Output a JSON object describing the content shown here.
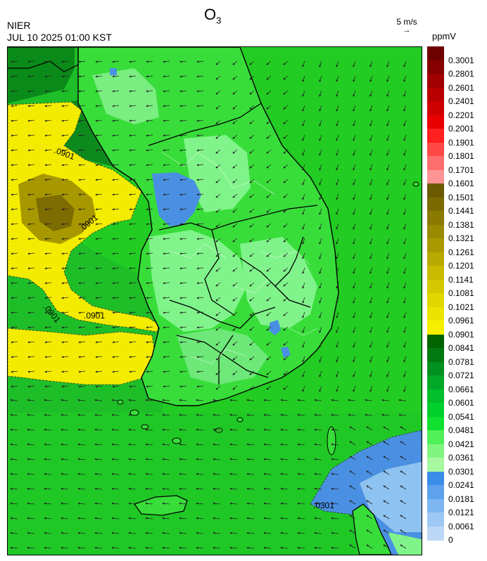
{
  "header": {
    "title_main": "O",
    "title_sub": "3",
    "org": "NIER",
    "datetime": "JUL 10 2025 01:00 KST",
    "wind_ref_label": "5 m/s",
    "wind_ref_arrow": "→",
    "unit": "ppmV"
  },
  "legend": {
    "labels": [
      "0.3001",
      "0.2801",
      "0.2601",
      "0.2401",
      "0.2201",
      "0.2001",
      "0.1901",
      "0.1801",
      "0.1701",
      "0.1601",
      "0.1501",
      "0.1441",
      "0.1381",
      "0.1321",
      "0.1261",
      "0.1201",
      "0.1141",
      "0.1081",
      "0.1021",
      "0.0961",
      "0.0901",
      "0.0841",
      "0.0781",
      "0.0721",
      "0.0661",
      "0.0601",
      "0.0541",
      "0.0481",
      "0.0421",
      "0.0361",
      "0.0301",
      "0.0241",
      "0.0181",
      "0.0121",
      "0.0061",
      "0"
    ],
    "colors": [
      "#6e0000",
      "#860000",
      "#a00000",
      "#b80000",
      "#d00000",
      "#e80000",
      "#ff2020",
      "#ff4848",
      "#ff6e6e",
      "#ff9494",
      "#6b5a00",
      "#7a6a00",
      "#8a7a00",
      "#9a8a00",
      "#aa9a00",
      "#b8aa00",
      "#c8ba00",
      "#d4c800",
      "#e0d600",
      "#ece400",
      "#f6f000",
      "#006400",
      "#007a10",
      "#009020",
      "#00a828",
      "#00bf2a",
      "#00d02e",
      "#10e030",
      "#50f058",
      "#80f580",
      "#a8f8a0",
      "#3a8ee8",
      "#5ea2ee",
      "#7eb6f2",
      "#9ec8f4",
      "#bcd8f6"
    ]
  },
  "map": {
    "contour_labels": [
      ".0901",
      ".0901",
      ".0901",
      ".0901",
      ".0301"
    ]
  }
}
